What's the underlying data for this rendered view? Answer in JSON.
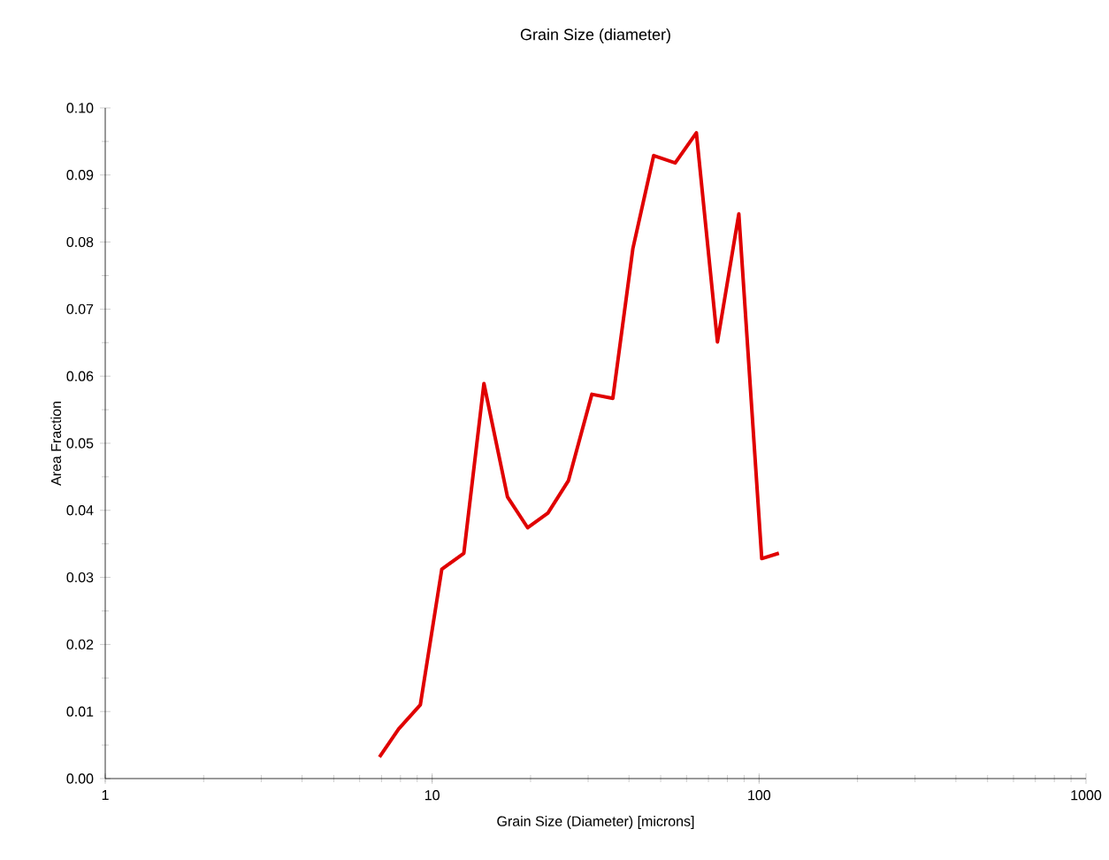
{
  "chart_data": {
    "type": "line",
    "title": "Grain Size (diameter)",
    "xlabel": "Grain Size (Diameter) [microns]",
    "ylabel": "Area Fraction",
    "log": "x",
    "xlim": [
      1,
      1000
    ],
    "xticks": [
      1,
      10,
      100,
      1000
    ],
    "ylim": [
      0,
      0.1
    ],
    "yticks": [
      {
        "value": 0,
        "label": "0.00"
      },
      {
        "value": 0.01,
        "label": "0.01"
      },
      {
        "value": 0.02,
        "label": "0.02"
      },
      {
        "value": 0.03,
        "label": "0.03"
      },
      {
        "value": 0.04,
        "label": "0.04"
      },
      {
        "value": 0.05,
        "label": "0.05"
      },
      {
        "value": 0.06,
        "label": "0.06"
      },
      {
        "value": 0.07,
        "label": "0.07"
      },
      {
        "value": 0.08,
        "label": "0.08"
      },
      {
        "value": 0.09,
        "label": "0.09"
      },
      {
        "value": 0.1,
        "label": "0.10"
      }
    ],
    "marker": "none",
    "line_style": "solid",
    "series": [
      {
        "color": "#e00000",
        "x": [
          6.9,
          7.9,
          9.2,
          10.7,
          12.5,
          14.4,
          17.0,
          19.6,
          22.6,
          26.1,
          30.8,
          35.7,
          41.1,
          47.6,
          55.4,
          64.3,
          74.6,
          86.7,
          101.9,
          115
        ],
        "values": [
          0.0032,
          0.0074,
          0.011,
          0.0312,
          0.0336,
          0.0589,
          0.042,
          0.0374,
          0.0396,
          0.0444,
          0.0573,
          0.0567,
          0.079,
          0.0929,
          0.0918,
          0.0963,
          0.0651,
          0.0842,
          0.0328,
          0.0336
        ]
      }
    ]
  }
}
